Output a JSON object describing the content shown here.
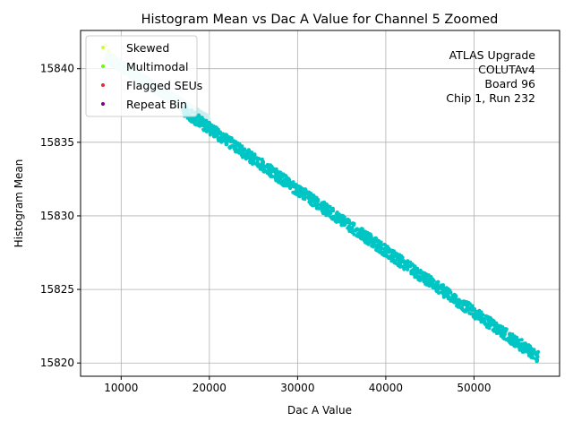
{
  "chart_data": {
    "type": "scatter",
    "title": "Histogram Mean vs Dac A Value for Channel 5 Zoomed",
    "xlabel": "Dac A Value",
    "ylabel": "Histogram Mean",
    "xlim": [
      5400,
      59700
    ],
    "ylim": [
      15819.1,
      15842.6
    ],
    "xticks": [
      10000,
      20000,
      30000,
      40000,
      50000
    ],
    "xtick_labels": [
      "10000",
      "20000",
      "30000",
      "40000",
      "50000"
    ],
    "yticks": [
      15820,
      15825,
      15830,
      15835,
      15840
    ],
    "ytick_labels": [
      "15820",
      "15825",
      "15830",
      "15835",
      "15840"
    ],
    "grid": true,
    "legend_position": "top-left",
    "annotation": [
      "ATLAS Upgrade",
      "COLUTAv4",
      "Board 96",
      "Chip 1, Run 232"
    ],
    "series": [
      {
        "name": "Skewed",
        "color": "#ccff33",
        "x": [
          8300,
          8600,
          9100,
          9800,
          10400
        ],
        "y": [
          15841.6,
          15841.2,
          15840.9,
          15840.6,
          15840.3
        ]
      },
      {
        "name": "Multimodal",
        "color": "#66ff00",
        "x": [],
        "y": []
      },
      {
        "name": "Flagged SEUs",
        "color": "#e03030",
        "x": [],
        "y": []
      },
      {
        "name": "Repeat Bin",
        "color": "#800080",
        "x": [],
        "y": []
      },
      {
        "name": "",
        "color": "#cceeee",
        "x_range": [
          8300,
          20000
        ],
        "y_start": 15840.8,
        "y_end": 15836.4,
        "band": 0.7
      },
      {
        "name": "",
        "color": "#00c5c5",
        "x_range": [
          17000,
          57300
        ],
        "y_start": 15837.2,
        "y_end": 15820.4,
        "band": 0.8
      }
    ]
  }
}
